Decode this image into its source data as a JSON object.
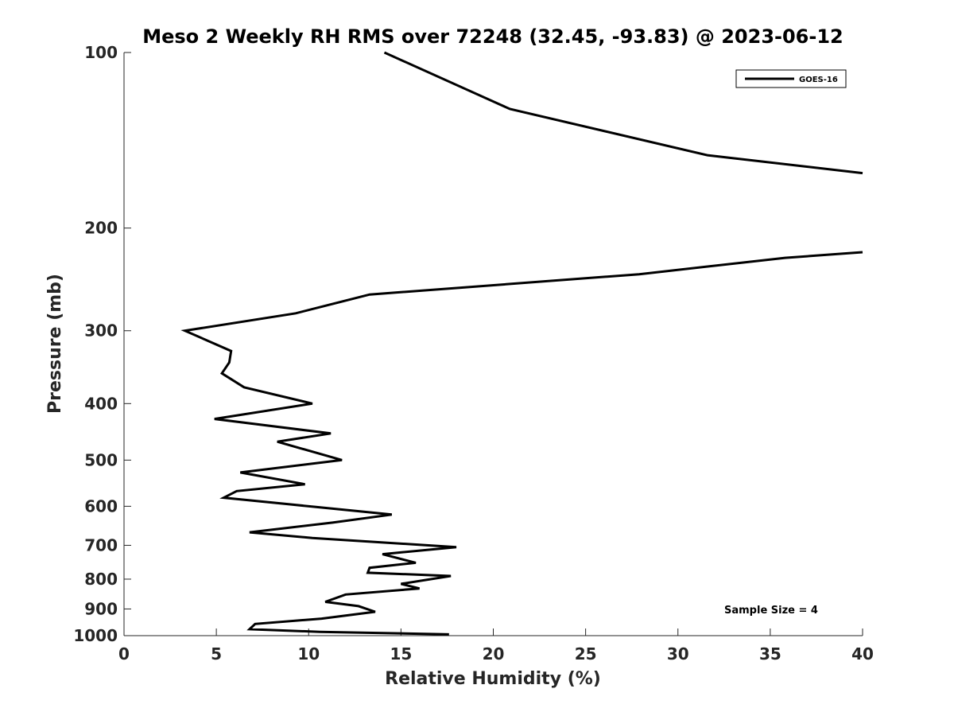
{
  "chart_data": {
    "type": "line",
    "title": "Meso 2 Weekly RH RMS over 72248 (32.45, -93.83) @ 2023-06-12",
    "xlabel": "Relative Humidity (%)",
    "ylabel": "Pressure (mb)",
    "xlim": [
      0,
      40
    ],
    "ylim": [
      1000,
      100
    ],
    "yscale": "log",
    "y_reversed": true,
    "x_ticks": [
      "0",
      "5",
      "10",
      "15",
      "20",
      "25",
      "30",
      "35",
      "40"
    ],
    "y_ticks": [
      "100",
      "200",
      "300",
      "400",
      "500",
      "600",
      "700",
      "800",
      "900",
      "1000"
    ],
    "grid": false,
    "legend_position": "top-right",
    "annotation": "Sample Size = 4",
    "series": [
      {
        "name": "GOES-16",
        "color": "#000000",
        "x": [
          14.1,
          20.9,
          31.6,
          40.0,
          null,
          40.0,
          35.8,
          27.9,
          13.3,
          9.3,
          3.3,
          5.8,
          5.7,
          5.3,
          6.5,
          10.2,
          4.9,
          11.2,
          8.3,
          11.8,
          6.3,
          9.8,
          6.1,
          5.4,
          14.5,
          11.3,
          6.8,
          10.2,
          18.0,
          14.0,
          15.8,
          13.3,
          13.2,
          17.7,
          15.0,
          16.0,
          12.0,
          10.9,
          12.7,
          13.6,
          10.7,
          7.1,
          6.8,
          10.6,
          17.6
        ],
        "y": [
          100,
          125,
          150,
          161,
          null,
          220,
          225,
          240,
          260,
          280,
          300,
          325,
          340,
          355,
          375,
          400,
          425,
          450,
          465,
          500,
          525,
          550,
          565,
          580,
          620,
          640,
          665,
          680,
          705,
          725,
          750,
          765,
          780,
          790,
          815,
          830,
          850,
          875,
          890,
          910,
          935,
          955,
          975,
          985,
          995
        ]
      }
    ]
  }
}
